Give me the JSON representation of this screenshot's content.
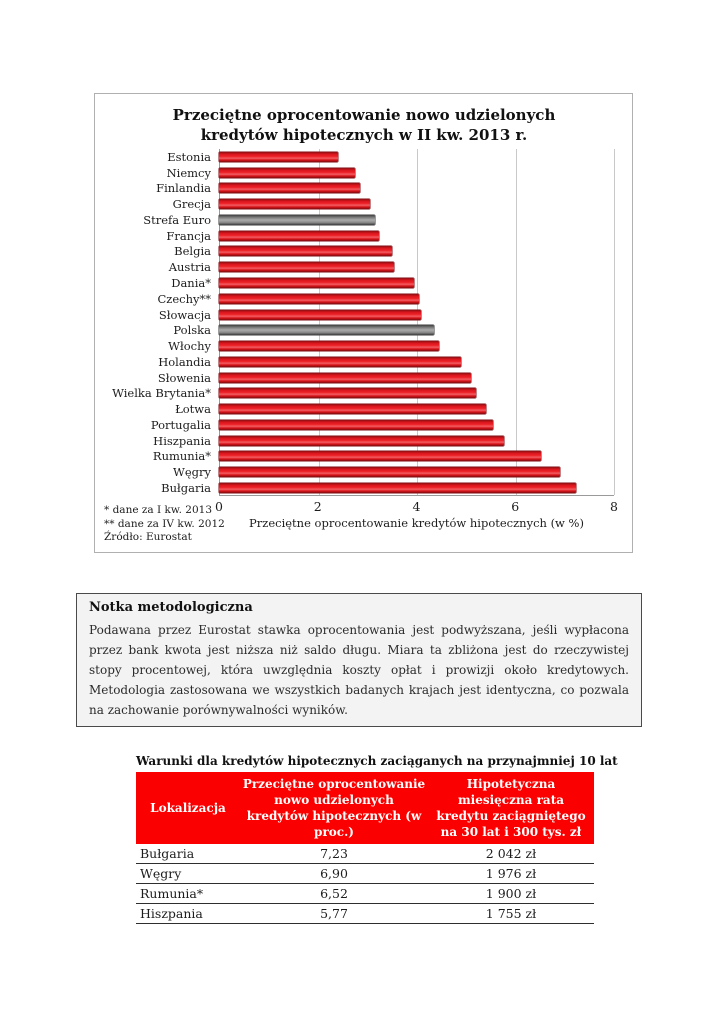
{
  "chart": {
    "title": "Przeciętne oprocentowanie nowo udzielonych kredytów hipotecznych w II kw. 2013 r.",
    "xlabel": "Przeciętne oprocentowanie kredytów hipotecznych (w %)",
    "x_ticks": [
      "0",
      "2",
      "4",
      "6",
      "8"
    ],
    "footnotes": [
      "* dane za I kw. 2013",
      "** dane za IV kw. 2012",
      "Źródło: Eurostat"
    ]
  },
  "chart_data": {
    "type": "bar",
    "orientation": "horizontal",
    "title": "Przeciętne oprocentowanie nowo udzielonych kredytów hipotecznych w II kw. 2013 r.",
    "xlabel": "Przeciętne oprocentowanie kredytów hipotecznych (w %)",
    "xlim": [
      0,
      8
    ],
    "grid": true,
    "categories": [
      "Estonia",
      "Niemcy",
      "Finlandia",
      "Grecja",
      "Strefa Euro",
      "Francja",
      "Belgia",
      "Austria",
      "Dania*",
      "Czechy**",
      "Słowacja",
      "Polska",
      "Włochy",
      "Holandia",
      "Słowenia",
      "Wielka Brytania*",
      "Łotwa",
      "Portugalia",
      "Hiszpania",
      "Rumunia*",
      "Węgry",
      "Bułgaria"
    ],
    "values": [
      2.4,
      2.75,
      2.85,
      3.05,
      3.15,
      3.25,
      3.5,
      3.55,
      3.95,
      4.05,
      4.1,
      4.35,
      4.45,
      4.9,
      5.1,
      5.2,
      5.4,
      5.55,
      5.77,
      6.52,
      6.9,
      7.23
    ],
    "gray_categories": [
      "Strefa Euro",
      "Polska"
    ],
    "colors": {
      "bar": "#e31b23",
      "highlight": "#8c8c8c"
    }
  },
  "note_box": {
    "title": "Notka metodologiczna",
    "body": "Podawana przez Eurostat stawka oprocentowania jest podwyższana, jeśli wypłacona przez bank kwota jest niższa niż saldo długu. Miara ta zbliżona jest do rzeczywistej stopy procentowej, która uwzględnia koszty opłat i prowizji około kredytowych. Metodologia zastosowana we wszystkich badanych krajach jest identyczna, co pozwala na zachowanie porównywalności wyników."
  },
  "table": {
    "title": "Warunki dla kredytów hipotecznych zaciąganych na przynajmniej 10 lat",
    "headers": [
      "Lokalizacja",
      "Przeciętne oprocentowanie nowo udzielonych kredytów hipotecznych (w proc.)",
      "Hipotetyczna miesięczna rata kredytu zaciągniętego na 30 lat i 300 tys. zł"
    ],
    "rows": [
      [
        "Bułgaria",
        "7,23",
        "2 042 zł"
      ],
      [
        "Węgry",
        "6,90",
        "1 976 zł"
      ],
      [
        "Rumunia*",
        "6,52",
        "1 900 zł"
      ],
      [
        "Hiszpania",
        "5,77",
        "1 755 zł"
      ]
    ],
    "header_bg": "#fb0000"
  }
}
